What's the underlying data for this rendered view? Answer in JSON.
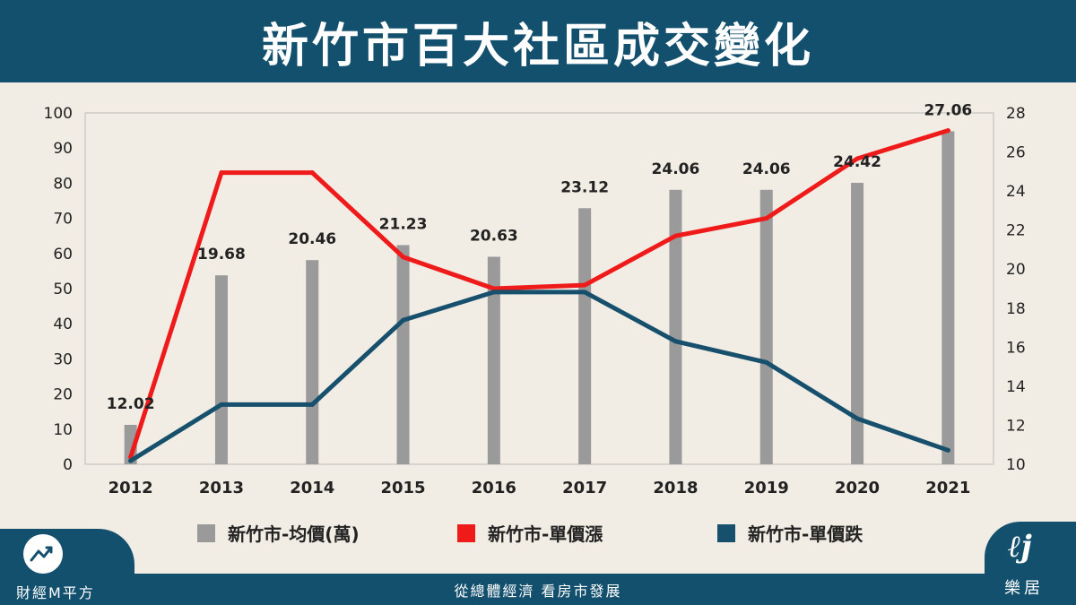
{
  "title": "新竹市百大社區成交變化",
  "footer": {
    "left_brand": "財經M平方",
    "center_text": "從總體經濟 看房市發展",
    "right_brand": "樂居"
  },
  "colors": {
    "header_bg": "#13506e",
    "page_bg": "#f1ece4",
    "bar": "#9a9a9a",
    "rise_line": "#ef1b1b",
    "fall_line": "#16506d"
  },
  "chart_data": {
    "type": "bar",
    "categories": [
      "2012",
      "2013",
      "2014",
      "2015",
      "2016",
      "2017",
      "2018",
      "2019",
      "2020",
      "2021"
    ],
    "ylim": [
      0,
      100
    ],
    "y_ticks": [
      0,
      10,
      20,
      30,
      40,
      50,
      60,
      70,
      80,
      90,
      100
    ],
    "y2lim": [
      10,
      28
    ],
    "y2_ticks": [
      10,
      12,
      14,
      16,
      18,
      20,
      22,
      24,
      26,
      28
    ],
    "data_labels": [
      "12.02",
      "19.68",
      "20.46",
      "21.23",
      "20.63",
      "23.12",
      "24.06",
      "24.06",
      "24.42",
      "27.06"
    ],
    "series": [
      {
        "name": "新竹市-均價(萬)",
        "type": "bar",
        "axis": "right",
        "values": [
          12.02,
          19.68,
          20.46,
          21.23,
          20.63,
          23.12,
          24.06,
          24.06,
          24.42,
          27.06
        ]
      },
      {
        "name": "新竹市-單價漲",
        "type": "line",
        "axis": "left",
        "values": [
          2,
          83,
          83,
          59,
          50,
          51,
          65,
          70,
          87,
          95
        ]
      },
      {
        "name": "新竹市-單價跌",
        "type": "line",
        "axis": "left",
        "values": [
          1,
          17,
          17,
          41,
          49,
          49,
          35,
          29,
          13,
          4
        ]
      }
    ],
    "grid": false,
    "legend_position": "bottom"
  }
}
